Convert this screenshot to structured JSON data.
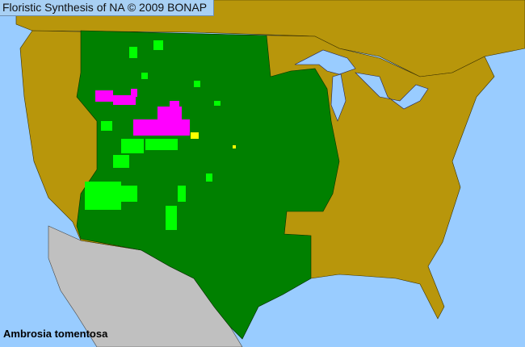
{
  "header": {
    "title": "Floristic Synthesis of NA © 2009 BONAP"
  },
  "species": {
    "name": "Ambrosia tomentosa"
  },
  "colors": {
    "water": "#99ccff",
    "species_absent": "#b8960b",
    "species_present_state": "#008000",
    "native_county": "#00ff00",
    "noxious_county": "#ff00ff",
    "rare_county": "#ffff00",
    "outside_region": "#c0c0c0"
  }
}
